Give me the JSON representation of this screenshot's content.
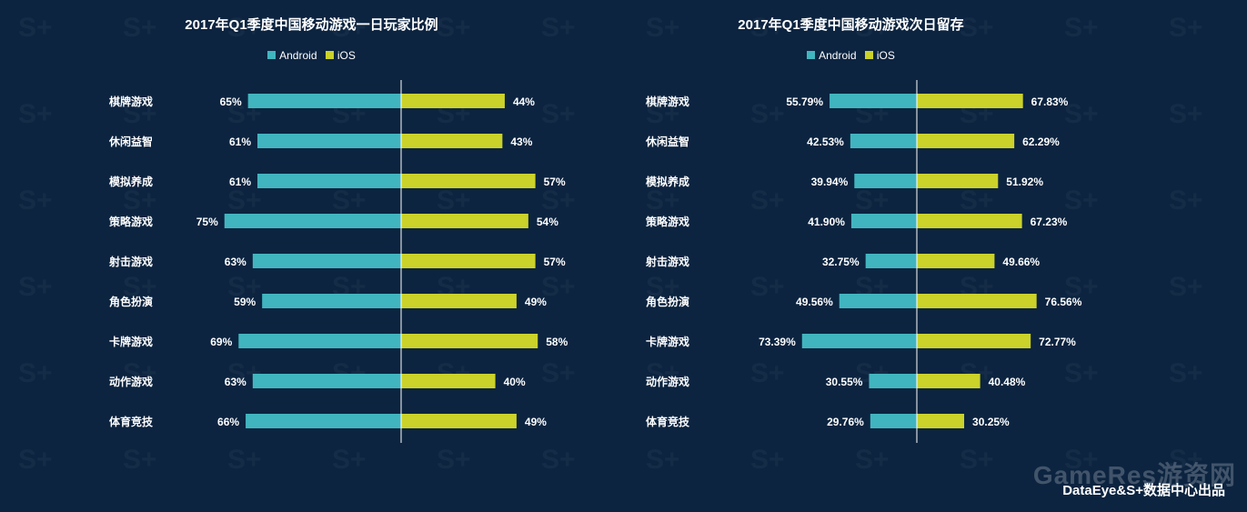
{
  "colors": {
    "background": "#0c2440",
    "android": "#41b5bf",
    "ios": "#cbd22a",
    "text": "#ffffff",
    "axis": "#ffffff"
  },
  "legend": {
    "android": "Android",
    "ios": "iOS"
  },
  "chart_data": [
    {
      "type": "bar",
      "orientation": "horizontal-diverging",
      "title": "2017年Q1季度中国移动游戏一日玩家比例",
      "categories": [
        "棋牌游戏",
        "休闲益智",
        "模拟养成",
        "策略游戏",
        "射击游戏",
        "角色扮演",
        "卡牌游戏",
        "动作游戏",
        "体育竞技"
      ],
      "series": [
        {
          "name": "Android",
          "values": [
            65,
            61,
            61,
            75,
            63,
            59,
            69,
            63,
            66
          ],
          "labels": [
            "65%",
            "61%",
            "61%",
            "75%",
            "63%",
            "59%",
            "69%",
            "63%",
            "66%"
          ]
        },
        {
          "name": "iOS",
          "values": [
            44,
            43,
            57,
            54,
            57,
            49,
            58,
            40,
            49
          ],
          "labels": [
            "44%",
            "43%",
            "57%",
            "54%",
            "57%",
            "49%",
            "58%",
            "40%",
            "49%"
          ]
        }
      ],
      "unit": "%"
    },
    {
      "type": "bar",
      "orientation": "horizontal-diverging",
      "title": "2017年Q1季度中国移动游戏次日留存",
      "categories": [
        "棋牌游戏",
        "休闲益智",
        "模拟养成",
        "策略游戏",
        "射击游戏",
        "角色扮演",
        "卡牌游戏",
        "动作游戏",
        "体育竞技"
      ],
      "series": [
        {
          "name": "Android",
          "values": [
            55.79,
            42.53,
            39.94,
            41.9,
            32.75,
            49.56,
            73.39,
            30.55,
            29.76
          ],
          "labels": [
            "55.79%",
            "42.53%",
            "39.94%",
            "41.90%",
            "32.75%",
            "49.56%",
            "73.39%",
            "30.55%",
            "29.76%"
          ]
        },
        {
          "name": "iOS",
          "values": [
            67.83,
            62.29,
            51.92,
            67.23,
            49.66,
            76.56,
            72.77,
            40.48,
            30.25
          ],
          "labels": [
            "67.83%",
            "62.29%",
            "51.92%",
            "67.23%",
            "49.66%",
            "76.56%",
            "72.77%",
            "40.48%",
            "30.25%"
          ]
        }
      ],
      "unit": "%"
    }
  ],
  "watermark": "GameRes游资网",
  "footer": "DataEye&S+数据中心出品"
}
